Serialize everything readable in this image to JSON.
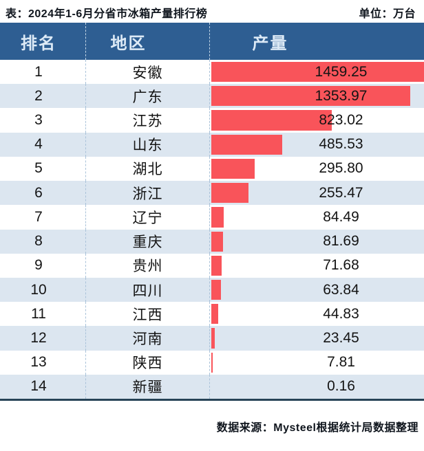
{
  "header": {
    "title": "表：2024年1-6月分省市冰箱产量排行榜",
    "unit_label": "单位：万台"
  },
  "table": {
    "columns": [
      {
        "key": "rank",
        "label": "排名"
      },
      {
        "key": "region",
        "label": "地区"
      },
      {
        "key": "output",
        "label": "产量"
      }
    ],
    "rows": [
      {
        "rank": "1",
        "region": "安徽",
        "value": "1459.25",
        "value_num": 1459.25
      },
      {
        "rank": "2",
        "region": "广东",
        "value": "1353.97",
        "value_num": 1353.97
      },
      {
        "rank": "3",
        "region": "江苏",
        "value": "823.02",
        "value_num": 823.02
      },
      {
        "rank": "4",
        "region": "山东",
        "value": "485.53",
        "value_num": 485.53
      },
      {
        "rank": "5",
        "region": "湖北",
        "value": "295.80",
        "value_num": 295.8
      },
      {
        "rank": "6",
        "region": "浙江",
        "value": "255.47",
        "value_num": 255.47
      },
      {
        "rank": "7",
        "region": "辽宁",
        "value": "84.49",
        "value_num": 84.49
      },
      {
        "rank": "8",
        "region": "重庆",
        "value": "81.69",
        "value_num": 81.69
      },
      {
        "rank": "9",
        "region": "贵州",
        "value": "71.68",
        "value_num": 71.68
      },
      {
        "rank": "10",
        "region": "四川",
        "value": "63.84",
        "value_num": 63.84
      },
      {
        "rank": "11",
        "region": "江西",
        "value": "44.83",
        "value_num": 44.83
      },
      {
        "rank": "12",
        "region": "河南",
        "value": "23.45",
        "value_num": 23.45
      },
      {
        "rank": "13",
        "region": "陕西",
        "value": "7.81",
        "value_num": 7.81
      },
      {
        "rank": "14",
        "region": "新疆",
        "value": "0.16",
        "value_num": 0.16
      }
    ]
  },
  "footer": {
    "source": "数据来源：Mysteel根据统计局数据整理"
  },
  "colors": {
    "header_bg": "#2e5e92",
    "row_alt_bg": "#dce6f0",
    "bar": "#f9545a",
    "divider": "#274357"
  },
  "chart_data": {
    "type": "bar",
    "orientation": "horizontal",
    "title": "2024年1-6月分省市冰箱产量排行榜",
    "unit": "万台",
    "categories": [
      "安徽",
      "广东",
      "江苏",
      "山东",
      "湖北",
      "浙江",
      "辽宁",
      "重庆",
      "贵州",
      "四川",
      "江西",
      "河南",
      "陕西",
      "新疆"
    ],
    "values": [
      1459.25,
      1353.97,
      823.02,
      485.53,
      295.8,
      255.47,
      84.49,
      81.69,
      71.68,
      63.84,
      44.83,
      23.45,
      7.81,
      0.16
    ],
    "xlabel": "产量（万台）",
    "ylabel": "地区",
    "xlim": [
      0,
      1459.25
    ],
    "grid": false,
    "legend": false,
    "bar_color": "#f9545a",
    "value_labels": true,
    "source": "数据来源：Mysteel根据统计局数据整理"
  }
}
